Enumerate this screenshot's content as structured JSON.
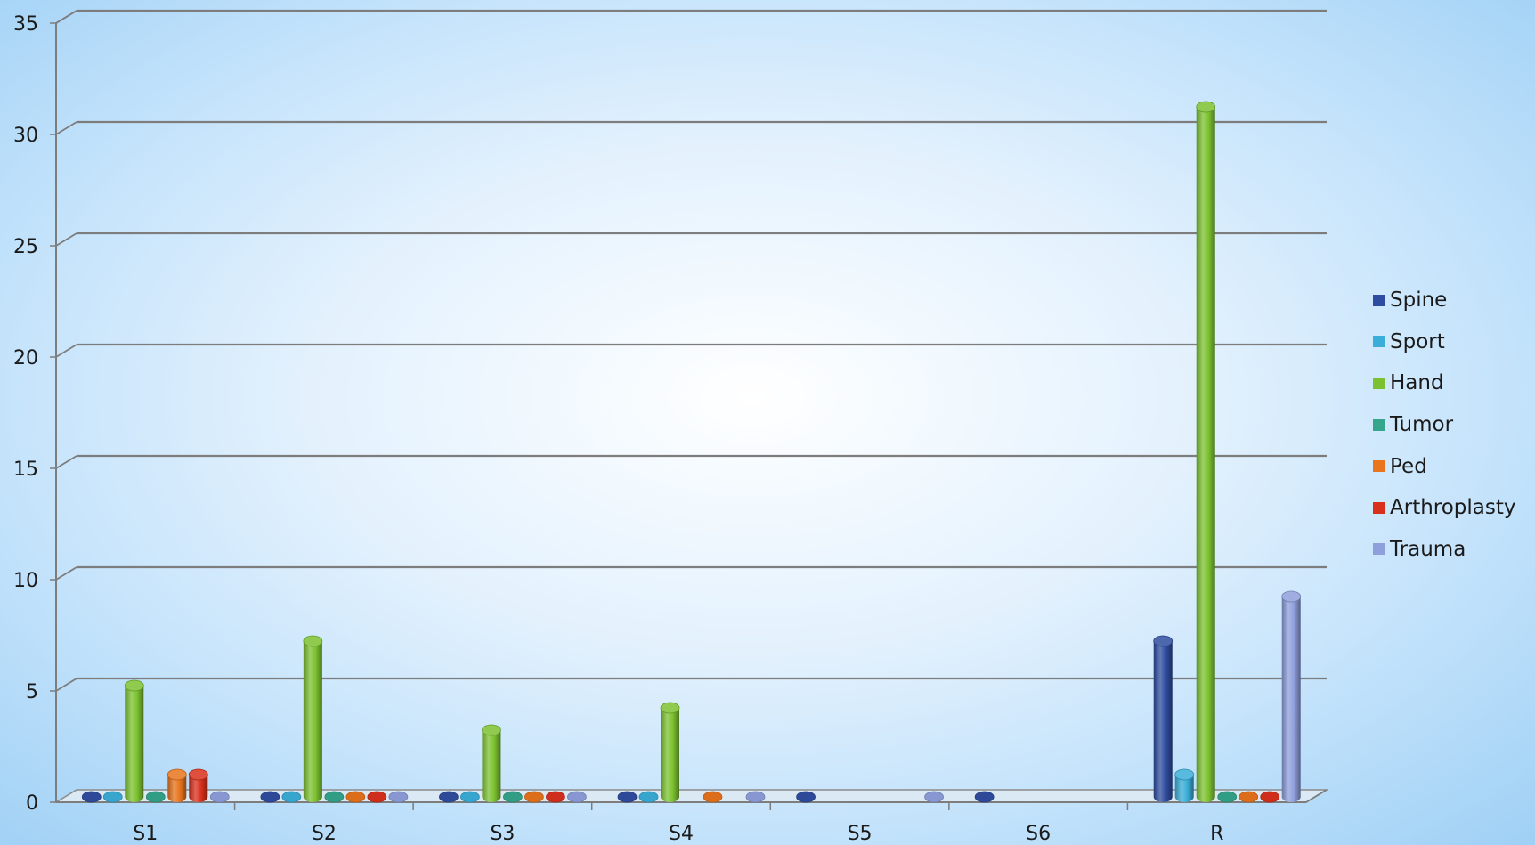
{
  "chart_data": {
    "type": "bar",
    "title": "",
    "xlabel": "",
    "ylabel": "",
    "categories": [
      "S1",
      "S2",
      "S3",
      "S4",
      "S5",
      "S6",
      "R"
    ],
    "ylim": [
      0,
      35
    ],
    "yticks": [
      0,
      5,
      10,
      15,
      20,
      25,
      30,
      35
    ],
    "grid": true,
    "legend_position": "right",
    "style": "3d-cylinder",
    "series": [
      {
        "name": "Spine",
        "color": "#2f4da0",
        "values": [
          0,
          0,
          0,
          0,
          0,
          0,
          7
        ]
      },
      {
        "name": "Sport",
        "color": "#3aaed8",
        "values": [
          0,
          0,
          0,
          0,
          null,
          null,
          1
        ]
      },
      {
        "name": "Hand",
        "color": "#7cc230",
        "values": [
          5,
          7,
          3,
          4,
          null,
          null,
          31
        ]
      },
      {
        "name": "Tumor",
        "color": "#35a58c",
        "values": [
          0,
          0,
          0,
          null,
          null,
          null,
          0
        ]
      },
      {
        "name": "Ped",
        "color": "#e8741c",
        "values": [
          1,
          0,
          0,
          0,
          null,
          null,
          0
        ]
      },
      {
        "name": "Arthroplasty",
        "color": "#d9301c",
        "values": [
          1,
          0,
          0,
          null,
          null,
          null,
          0
        ]
      },
      {
        "name": "Trauma",
        "color": "#8f9fdc",
        "values": [
          0,
          0,
          0,
          0,
          0,
          null,
          9
        ]
      }
    ]
  }
}
